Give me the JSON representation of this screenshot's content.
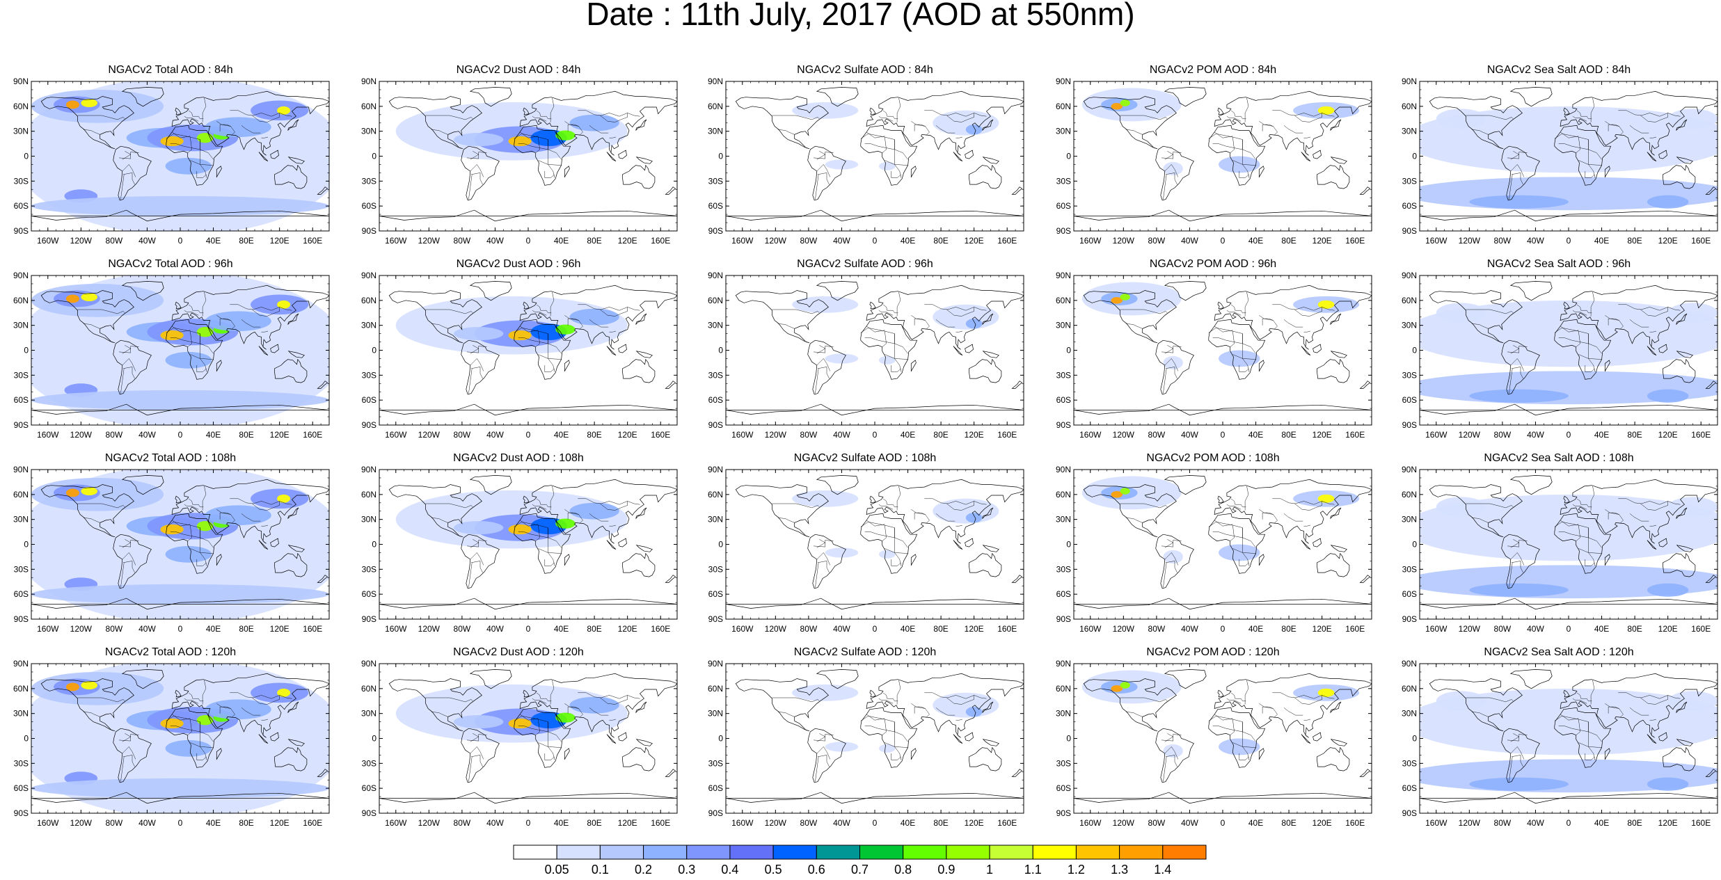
{
  "title": "Date : 11th July, 2017 (AOD at 550nm)",
  "lat_ticks": [
    "90N",
    "60N",
    "30N",
    "0",
    "30S",
    "60S",
    "90S"
  ],
  "lon_ticks": [
    "160W",
    "120W",
    "80W",
    "40W",
    "0",
    "40E",
    "80E",
    "120E",
    "160E"
  ],
  "rows": [
    {
      "forecast_hour": "84h",
      "panels": [
        {
          "title": "NGACv2 Total AOD : 84h",
          "species": "total"
        },
        {
          "title": "NGACv2 Dust AOD : 84h",
          "species": "dust"
        },
        {
          "title": "NGACv2 Sulfate AOD : 84h",
          "species": "sulfate"
        },
        {
          "title": "NGACv2 POM AOD : 84h",
          "species": "pom"
        },
        {
          "title": "NGACv2 Sea Salt AOD : 84h",
          "species": "seasalt"
        }
      ]
    },
    {
      "forecast_hour": "96h",
      "panels": [
        {
          "title": "NGACv2 Total AOD : 96h",
          "species": "total"
        },
        {
          "title": "NGACv2 Dust AOD : 96h",
          "species": "dust"
        },
        {
          "title": "NGACv2 Sulfate AOD : 96h",
          "species": "sulfate"
        },
        {
          "title": "NGACv2 POM AOD : 96h",
          "species": "pom"
        },
        {
          "title": "NGACv2 Sea Salt AOD : 96h",
          "species": "seasalt"
        }
      ]
    },
    {
      "forecast_hour": "108h",
      "panels": [
        {
          "title": "NGACv2 Total AOD : 108h",
          "species": "total"
        },
        {
          "title": "NGACv2 Dust AOD : 108h",
          "species": "dust"
        },
        {
          "title": "NGACv2 Sulfate AOD : 108h",
          "species": "sulfate"
        },
        {
          "title": "NGACv2 POM AOD : 108h",
          "species": "pom"
        },
        {
          "title": "NGACv2 Sea Salt AOD : 108h",
          "species": "seasalt"
        }
      ]
    },
    {
      "forecast_hour": "120h",
      "panels": [
        {
          "title": "NGACv2 Total AOD : 120h",
          "species": "total"
        },
        {
          "title": "NGACv2 Dust AOD : 120h",
          "species": "dust"
        },
        {
          "title": "NGACv2 Sulfate AOD : 120h",
          "species": "sulfate"
        },
        {
          "title": "NGACv2 POM AOD : 120h",
          "species": "pom"
        },
        {
          "title": "NGACv2 Sea Salt  AOD : 120h",
          "species": "seasalt"
        }
      ]
    }
  ],
  "colorbar": {
    "labels": [
      "0.05",
      "0.1",
      "0.2",
      "0.3",
      "0.4",
      "0.5",
      "0.6",
      "0.7",
      "0.8",
      "0.9",
      "1",
      "1.1",
      "1.2",
      "1.3",
      "1.4"
    ],
    "colors": [
      "#ffffff",
      "#d6e1ff",
      "#b5c9ff",
      "#8eb2ff",
      "#7f96ff",
      "#6370f8",
      "#0063ff",
      "#009696",
      "#00c633",
      "#63ff00",
      "#96ff00",
      "#c6ff33",
      "#ffff00",
      "#ffc400",
      "#ffa000",
      "#ff7d00",
      "#ff1900"
    ]
  }
}
